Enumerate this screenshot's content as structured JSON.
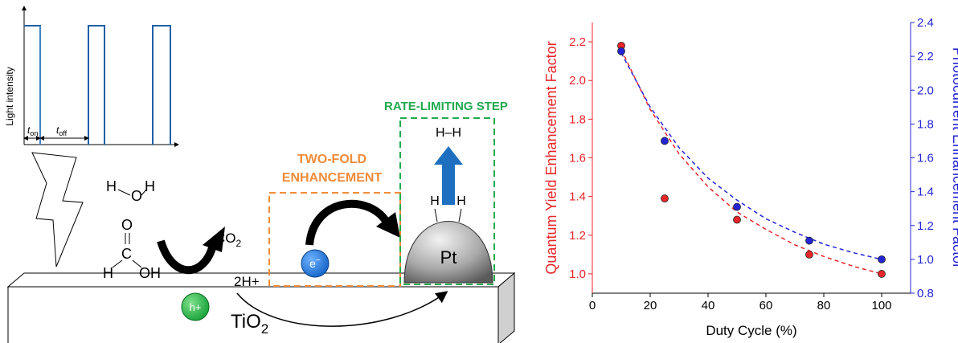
{
  "diagram": {
    "light_axis_label": "Light intensity",
    "t_on": {
      "t": "t",
      "sub": "on"
    },
    "t_off": {
      "t": "t",
      "sub": "off"
    },
    "water": {
      "h1": "H",
      "o": "O",
      "h2": "H"
    },
    "formic_acid": {
      "o": "O",
      "c": "C",
      "h": "H",
      "oh": "OH"
    },
    "co2": {
      "main": "CO",
      "sub": "2"
    },
    "hole": "h+",
    "protons": "2H+",
    "support": {
      "main": "TiO",
      "sub": "2"
    },
    "electron": {
      "main": "e",
      "sup": "−"
    },
    "two_fold": [
      "TWO-FOLD",
      "ENHANCEMENT"
    ],
    "rate_limiting": "RATE-LIMITING STEP",
    "h2": "H–H",
    "pt_h": [
      "H",
      "H"
    ],
    "pt": "Pt"
  },
  "chart_data": {
    "type": "scatter",
    "x_label": "Duty Cycle (%)",
    "y_label": "Quantum Yield Enhancement Factor",
    "y2_label": "Photocurrent Enhancement Factor",
    "xlim": [
      0,
      110
    ],
    "xticks": [
      0,
      20,
      40,
      60,
      80,
      100
    ],
    "ylim": [
      0.9,
      2.3
    ],
    "yticks": [
      {
        "value": 1,
        "label": "1.0"
      },
      1.2,
      1.4,
      1.6,
      1.8,
      {
        "value": 2,
        "label": "2.0"
      },
      2.2
    ],
    "y2lim": [
      0.8,
      2.4
    ],
    "y2ticks": [
      0.8,
      {
        "value": 1,
        "label": "1.0"
      },
      1.2,
      1.4,
      1.6,
      1.8,
      {
        "value": 2,
        "label": "2.0"
      },
      2.2,
      2.4
    ],
    "x": [
      10,
      25,
      50,
      75,
      100
    ],
    "series": [
      {
        "color": "#e8262a",
        "values": [
          2.18,
          1.39,
          1.28,
          1.1,
          1.0
        ]
      },
      {
        "color": "#2424d6",
        "axis": "y2",
        "values": [
          2.23,
          1.7,
          1.31,
          1.11,
          1.0
        ]
      }
    ],
    "fits": [
      {
        "color": "#e8262a",
        "dashed": true,
        "x": [
          10,
          20,
          30,
          40,
          50,
          60,
          70,
          80,
          90,
          100
        ],
        "values": [
          2.16,
          1.85,
          1.62,
          1.45,
          1.32,
          1.23,
          1.15,
          1.09,
          1.04,
          1.0
        ]
      },
      {
        "color": "#2424d6",
        "dashed": true,
        "axis": "y2",
        "x": [
          10,
          20,
          30,
          40,
          50,
          60,
          70,
          80,
          90,
          100
        ],
        "values": [
          2.22,
          1.9,
          1.66,
          1.48,
          1.35,
          1.24,
          1.16,
          1.09,
          1.04,
          1.0
        ]
      }
    ]
  }
}
